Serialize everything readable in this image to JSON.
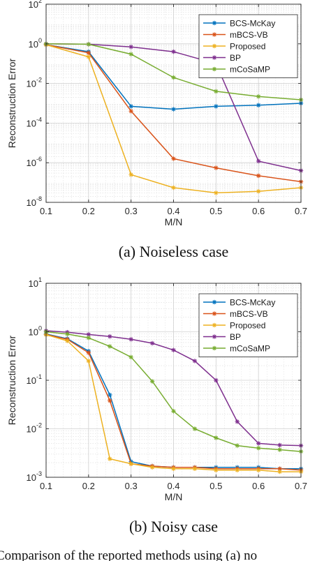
{
  "chart_data": [
    {
      "type": "line",
      "yscale": "log",
      "xlabel": "M/N",
      "ylabel": "Reconstruction Error",
      "xlim": [
        0.1,
        0.7
      ],
      "ylim": [
        1e-08,
        100
      ],
      "xticks": [
        "0.1",
        "0.2",
        "0.3",
        "0.4",
        "0.5",
        "0.6",
        "0.7"
      ],
      "yticks": [
        {
          "base": "10",
          "exp": "-8"
        },
        {
          "base": "10",
          "exp": "-6"
        },
        {
          "base": "10",
          "exp": "-4"
        },
        {
          "base": "10",
          "exp": "-2"
        },
        {
          "base": "10",
          "exp": "0"
        },
        {
          "base": "10",
          "exp": "2"
        }
      ],
      "grid": true,
      "legend_position": "top-right",
      "caption": "(a)  Noiseless case",
      "series": [
        {
          "name": "BCS-McKay",
          "color": "#0072BD",
          "marker": "asterisk",
          "x": [
            0.1,
            0.2,
            0.3,
            0.4,
            0.5,
            0.6,
            0.7
          ],
          "y": [
            0.9,
            0.4,
            0.0007,
            0.0005,
            0.0007,
            0.0008,
            0.001
          ]
        },
        {
          "name": "mBCS-VB",
          "color": "#D95319",
          "marker": "asterisk",
          "x": [
            0.1,
            0.2,
            0.3,
            0.4,
            0.5,
            0.6,
            0.7
          ],
          "y": [
            0.9,
            0.35,
            0.0004,
            1.6e-06,
            5.5e-07,
            2.2e-07,
            1.1e-07
          ]
        },
        {
          "name": "Proposed",
          "color": "#EDB120",
          "marker": "asterisk",
          "x": [
            0.1,
            0.2,
            0.3,
            0.4,
            0.5,
            0.6,
            0.7
          ],
          "y": [
            0.9,
            0.22,
            2.5e-07,
            5.5e-08,
            3e-08,
            3.6e-08,
            5.5e-08
          ]
        },
        {
          "name": "BP",
          "color": "#7E2F8E",
          "marker": "asterisk",
          "x": [
            0.1,
            0.2,
            0.3,
            0.4,
            0.5,
            0.6,
            0.7
          ],
          "y": [
            1.0,
            0.95,
            0.7,
            0.4,
            0.1,
            1.2e-06,
            4e-07
          ]
        },
        {
          "name": "mCoSaMP",
          "color": "#77AC30",
          "marker": "asterisk",
          "x": [
            0.1,
            0.2,
            0.3,
            0.4,
            0.5,
            0.6,
            0.7
          ],
          "y": [
            1.0,
            0.95,
            0.3,
            0.02,
            0.004,
            0.0022,
            0.0015
          ]
        }
      ]
    },
    {
      "type": "line",
      "yscale": "log",
      "xlabel": "M/N",
      "ylabel": "Reconstruction Error",
      "xlim": [
        0.1,
        0.7
      ],
      "ylim": [
        0.001,
        10
      ],
      "xticks": [
        "0.1",
        "0.2",
        "0.3",
        "0.4",
        "0.5",
        "0.6",
        "0.7"
      ],
      "yticks": [
        {
          "base": "10",
          "exp": "-3"
        },
        {
          "base": "10",
          "exp": "-2"
        },
        {
          "base": "10",
          "exp": "-1"
        },
        {
          "base": "10",
          "exp": "0"
        },
        {
          "base": "10",
          "exp": "1"
        }
      ],
      "grid": true,
      "legend_position": "top-right",
      "caption": "(b)  Noisy case",
      "series": [
        {
          "name": "BCS-McKay",
          "color": "#0072BD",
          "marker": "asterisk",
          "x": [
            0.1,
            0.15,
            0.2,
            0.25,
            0.3,
            0.35,
            0.4,
            0.45,
            0.5,
            0.55,
            0.6,
            0.65,
            0.7
          ],
          "y": [
            0.9,
            0.72,
            0.4,
            0.05,
            0.0021,
            0.0017,
            0.0016,
            0.0016,
            0.0016,
            0.0016,
            0.0016,
            0.0015,
            0.0015
          ]
        },
        {
          "name": "mBCS-VB",
          "color": "#D95319",
          "marker": "asterisk",
          "x": [
            0.1,
            0.15,
            0.2,
            0.25,
            0.3,
            0.35,
            0.4,
            0.45,
            0.5,
            0.55,
            0.6,
            0.65,
            0.7
          ],
          "y": [
            0.88,
            0.7,
            0.37,
            0.038,
            0.0019,
            0.0017,
            0.0016,
            0.0016,
            0.0015,
            0.0015,
            0.0015,
            0.0015,
            0.0014
          ]
        },
        {
          "name": "Proposed",
          "color": "#EDB120",
          "marker": "asterisk",
          "x": [
            0.1,
            0.15,
            0.2,
            0.25,
            0.3,
            0.35,
            0.4,
            0.45,
            0.5,
            0.55,
            0.6,
            0.65,
            0.7
          ],
          "y": [
            0.87,
            0.65,
            0.25,
            0.0024,
            0.0019,
            0.0016,
            0.0015,
            0.0015,
            0.0014,
            0.0014,
            0.0014,
            0.0013,
            0.0013
          ]
        },
        {
          "name": "BP",
          "color": "#7E2F8E",
          "marker": "asterisk",
          "x": [
            0.1,
            0.15,
            0.2,
            0.25,
            0.3,
            0.35,
            0.4,
            0.45,
            0.5,
            0.55,
            0.6,
            0.65,
            0.7
          ],
          "y": [
            1.05,
            0.98,
            0.88,
            0.8,
            0.7,
            0.58,
            0.42,
            0.25,
            0.1,
            0.014,
            0.005,
            0.0046,
            0.0045
          ]
        },
        {
          "name": "mCoSaMP",
          "color": "#77AC30",
          "marker": "asterisk",
          "x": [
            0.1,
            0.15,
            0.2,
            0.25,
            0.3,
            0.35,
            0.4,
            0.45,
            0.5,
            0.55,
            0.6,
            0.65,
            0.7
          ],
          "y": [
            1.0,
            0.9,
            0.75,
            0.5,
            0.3,
            0.095,
            0.023,
            0.01,
            0.0065,
            0.0045,
            0.004,
            0.0037,
            0.0034
          ]
        }
      ]
    }
  ],
  "footer_text": "Comparison of the reported methods using (a) no"
}
